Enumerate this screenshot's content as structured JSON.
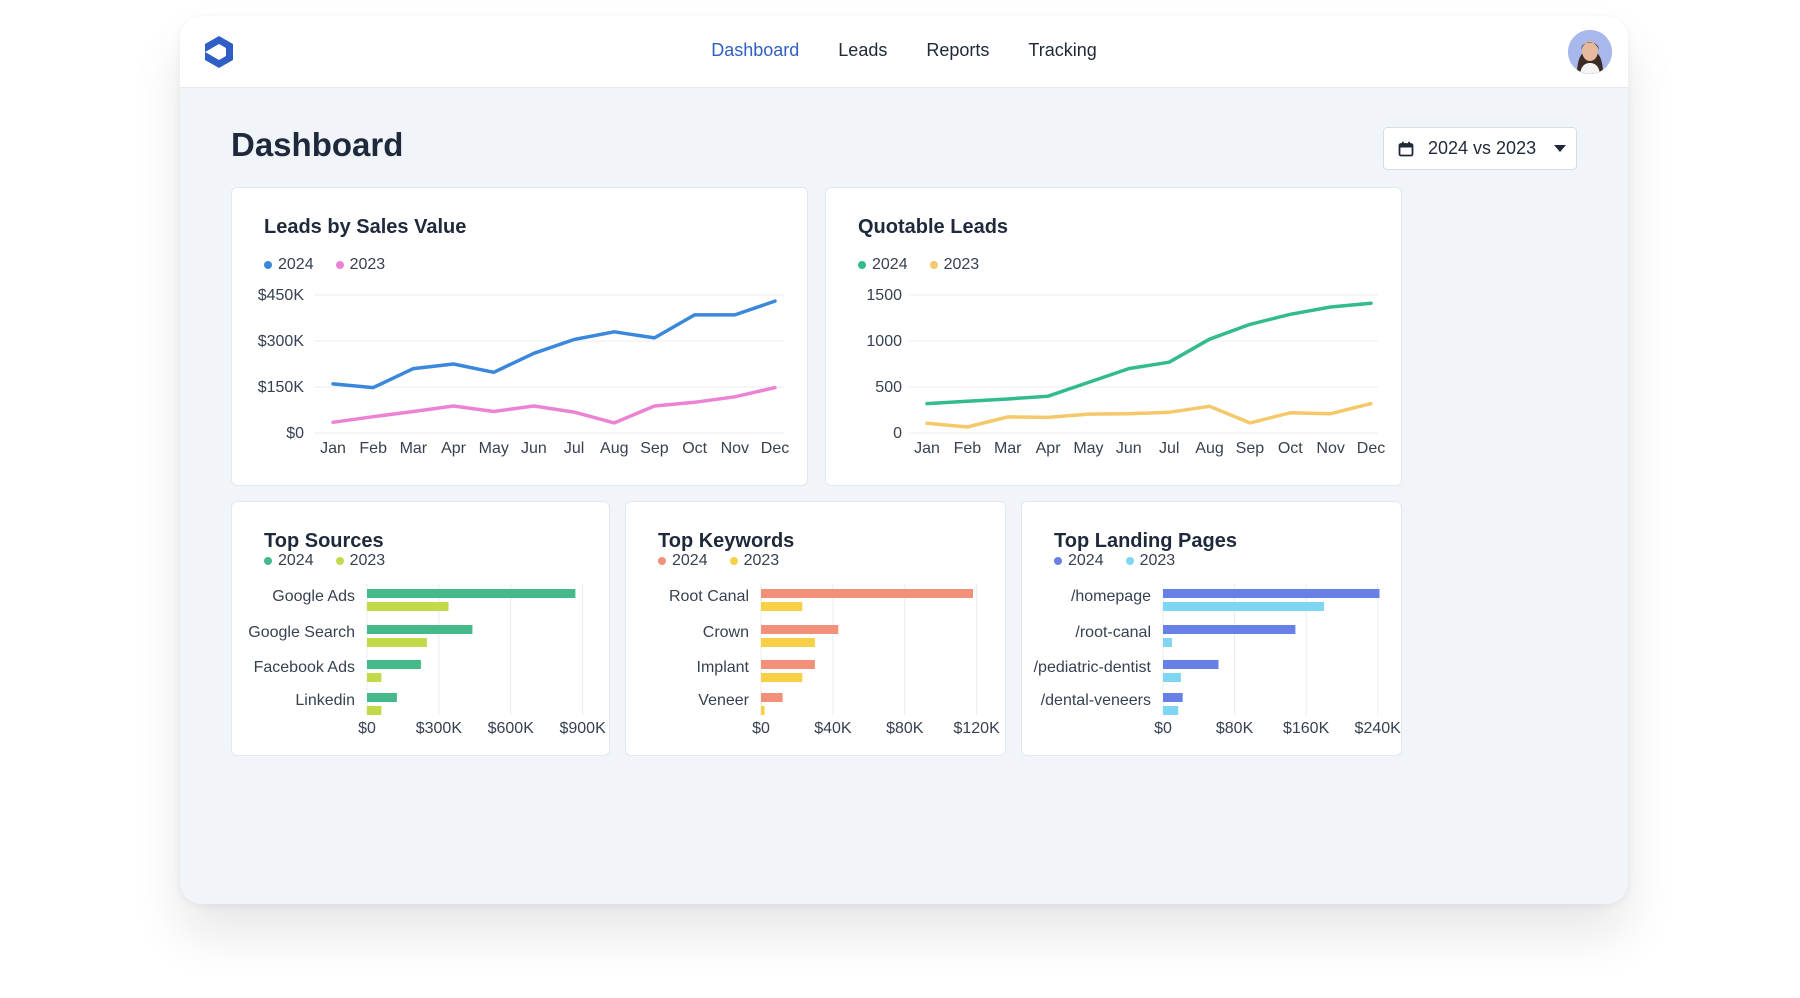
{
  "nav": {
    "items": [
      "Dashboard",
      "Leads",
      "Reports",
      "Tracking"
    ],
    "active": 0
  },
  "page": {
    "title": "Dashboard"
  },
  "date_filter": {
    "label": "2024 vs 2023"
  },
  "icons": {
    "logo": "hexagon-logo-icon",
    "calendar": "calendar-icon",
    "caret": "chevron-down-icon",
    "avatar": "user-avatar"
  },
  "colors": {
    "accent": "#2f5fc4",
    "logo": "#2f5fc4"
  },
  "chart_data": [
    {
      "id": "leads_by_sales_value",
      "type": "line",
      "title": "Leads by Sales Value",
      "categories": [
        "Jan",
        "Feb",
        "Mar",
        "Apr",
        "May",
        "Jun",
        "Jul",
        "Aug",
        "Sep",
        "Oct",
        "Nov",
        "Dec"
      ],
      "yticks": [
        0,
        150000,
        300000,
        450000
      ],
      "ytick_labels": [
        "$0",
        "$150K",
        "$300K",
        "$450K"
      ],
      "ylim": [
        0,
        450000
      ],
      "grid": true,
      "legend": "top-left",
      "series": [
        {
          "name": "2024",
          "color": "#3b87dc",
          "values": [
            160000,
            148000,
            210000,
            225000,
            198000,
            260000,
            305000,
            330000,
            310000,
            385000,
            385000,
            430000
          ]
        },
        {
          "name": "2023",
          "color": "#ec82d4",
          "values": [
            35000,
            53000,
            70000,
            88000,
            70000,
            88000,
            68000,
            33000,
            88000,
            100000,
            118000,
            148000
          ]
        }
      ]
    },
    {
      "id": "quotable_leads",
      "type": "line",
      "title": "Quotable Leads",
      "categories": [
        "Jan",
        "Feb",
        "Mar",
        "Apr",
        "May",
        "Jun",
        "Jul",
        "Aug",
        "Sep",
        "Oct",
        "Nov",
        "Dec"
      ],
      "yticks": [
        0,
        500,
        1000,
        1500
      ],
      "ytick_labels": [
        "0",
        "500",
        "1000",
        "1500"
      ],
      "ylim": [
        0,
        1500
      ],
      "grid": true,
      "legend": "top-left",
      "series": [
        {
          "name": "2024",
          "color": "#33bb8b",
          "values": [
            320,
            345,
            370,
            400,
            550,
            700,
            770,
            1020,
            1180,
            1290,
            1370,
            1410
          ]
        },
        {
          "name": "2023",
          "color": "#f5c86a",
          "values": [
            105,
            65,
            175,
            170,
            205,
            210,
            225,
            290,
            110,
            220,
            210,
            320
          ]
        }
      ]
    },
    {
      "id": "top_sources",
      "type": "bar",
      "orientation": "horizontal",
      "title": "Top Sources",
      "categories": [
        "Google Ads",
        "Google Search",
        "Facebook Ads",
        "Linkedin"
      ],
      "xticks": [
        0,
        300000,
        600000,
        900000
      ],
      "xtick_labels": [
        "$0",
        "$300K",
        "$600K",
        "$900K"
      ],
      "xlim": [
        0,
        960000
      ],
      "grid": true,
      "legend": "top-left",
      "series": [
        {
          "name": "2024",
          "color": "#45b98a",
          "values": [
            870000,
            440000,
            225000,
            125000
          ]
        },
        {
          "name": "2023",
          "color": "#c2d94a",
          "values": [
            340000,
            250000,
            60000,
            60000
          ]
        }
      ]
    },
    {
      "id": "top_keywords",
      "type": "bar",
      "orientation": "horizontal",
      "title": "Top Keywords",
      "categories": [
        "Root Canal",
        "Crown",
        "Implant",
        "Veneer"
      ],
      "xticks": [
        0,
        40000,
        80000,
        120000
      ],
      "xtick_labels": [
        "$0",
        "$40K",
        "$80K",
        "$120K"
      ],
      "xlim": [
        0,
        128000
      ],
      "grid": true,
      "legend": "top-left",
      "series": [
        {
          "name": "2024",
          "color": "#f3907a",
          "values": [
            118000,
            43000,
            30000,
            12000
          ]
        },
        {
          "name": "2023",
          "color": "#f8d046",
          "values": [
            23000,
            30000,
            23000,
            2000
          ]
        }
      ]
    },
    {
      "id": "top_landing_pages",
      "type": "bar",
      "orientation": "horizontal",
      "title": "Top Landing Pages",
      "categories": [
        "/homepage",
        "/root-canal",
        "/pediatric-dentist",
        "/dental-veneers"
      ],
      "xticks": [
        0,
        80000,
        160000,
        240000
      ],
      "xtick_labels": [
        "$0",
        "$80K",
        "$160K",
        "$240K"
      ],
      "xlim": [
        0,
        256000
      ],
      "grid": true,
      "legend": "top-left",
      "series": [
        {
          "name": "2024",
          "color": "#6680e6",
          "values": [
            242000,
            148000,
            62000,
            22000
          ]
        },
        {
          "name": "2023",
          "color": "#7fd6f2",
          "values": [
            180000,
            10000,
            20000,
            17000
          ]
        }
      ]
    }
  ]
}
